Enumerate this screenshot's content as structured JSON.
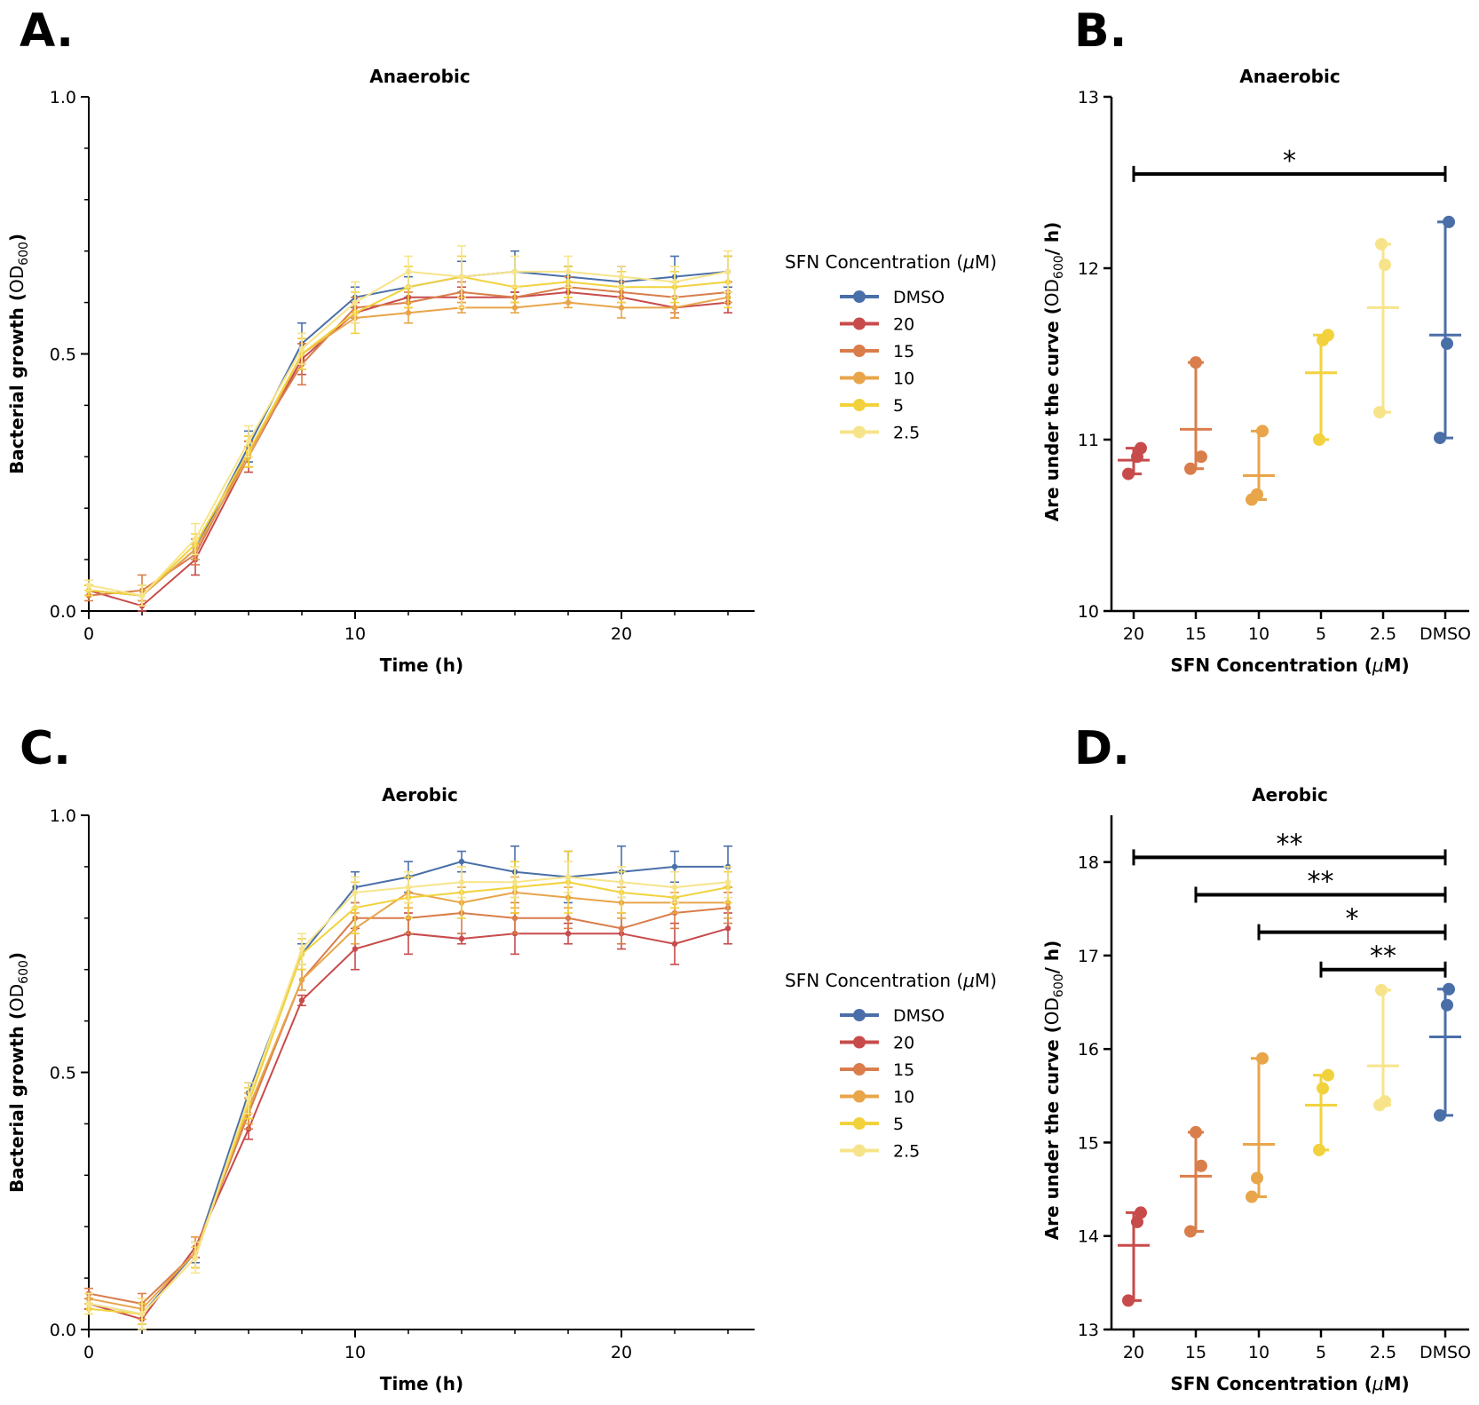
{
  "legend": {
    "title": "SFN Concentration (μM)",
    "series": [
      {
        "name": "DMSO",
        "color": "#4a6fa8"
      },
      {
        "name": "20",
        "color": "#c84b4b"
      },
      {
        "name": "15",
        "color": "#d97d4b"
      },
      {
        "name": "10",
        "color": "#e8a54a"
      },
      {
        "name": "5",
        "color": "#f2d23c"
      },
      {
        "name": "2.5",
        "color": "#f7e48a"
      }
    ]
  },
  "chart_data": [
    {
      "label": "A.",
      "type": "line",
      "title": "Anaerobic",
      "xlabel": "Time (h)",
      "ylabel": "Bacterial growth (OD600)",
      "xlim": [
        0,
        25
      ],
      "ylim": [
        0,
        1.0
      ],
      "xticks": [
        0,
        10,
        20
      ],
      "yticks": [
        0.0,
        0.5,
        1.0
      ],
      "x": [
        0,
        2,
        4,
        6,
        8,
        10,
        12,
        14,
        16,
        18,
        20,
        22,
        24
      ],
      "series": [
        {
          "name": "DMSO",
          "color": "#4a6fa8",
          "values": [
            0.04,
            0.03,
            0.12,
            0.32,
            0.52,
            0.61,
            0.63,
            0.65,
            0.66,
            0.65,
            0.64,
            0.65,
            0.66
          ],
          "err": [
            0.01,
            0.02,
            0.02,
            0.03,
            0.04,
            0.02,
            0.02,
            0.03,
            0.04,
            0.02,
            0.03,
            0.04,
            0.03
          ]
        },
        {
          "name": "20",
          "color": "#c84b4b",
          "values": [
            0.04,
            0.01,
            0.1,
            0.3,
            0.49,
            0.58,
            0.61,
            0.61,
            0.61,
            0.62,
            0.61,
            0.59,
            0.6
          ],
          "err": [
            0.01,
            0.01,
            0.03,
            0.03,
            0.03,
            0.02,
            0.02,
            0.02,
            0.01,
            0.02,
            0.02,
            0.02,
            0.02
          ]
        },
        {
          "name": "15",
          "color": "#d97d4b",
          "values": [
            0.03,
            0.04,
            0.11,
            0.31,
            0.48,
            0.59,
            0.6,
            0.62,
            0.61,
            0.63,
            0.62,
            0.61,
            0.62
          ],
          "err": [
            0.01,
            0.03,
            0.02,
            0.03,
            0.04,
            0.02,
            0.02,
            0.02,
            0.02,
            0.02,
            0.02,
            0.03,
            0.02
          ]
        },
        {
          "name": "10",
          "color": "#e8a54a",
          "values": [
            0.04,
            0.03,
            0.12,
            0.3,
            0.5,
            0.57,
            0.58,
            0.59,
            0.59,
            0.6,
            0.59,
            0.59,
            0.61
          ],
          "err": [
            0.01,
            0.01,
            0.02,
            0.02,
            0.03,
            0.01,
            0.02,
            0.01,
            0.01,
            0.01,
            0.02,
            0.02,
            0.01
          ]
        },
        {
          "name": "5",
          "color": "#f2d23c",
          "values": [
            0.04,
            0.03,
            0.13,
            0.31,
            0.5,
            0.58,
            0.63,
            0.65,
            0.63,
            0.64,
            0.63,
            0.63,
            0.64
          ],
          "err": [
            0.01,
            0.02,
            0.02,
            0.03,
            0.03,
            0.04,
            0.04,
            0.04,
            0.03,
            0.03,
            0.03,
            0.03,
            0.05
          ]
        },
        {
          "name": "2.5",
          "color": "#f7e48a",
          "values": [
            0.05,
            0.03,
            0.14,
            0.33,
            0.51,
            0.6,
            0.66,
            0.65,
            0.66,
            0.66,
            0.65,
            0.64,
            0.66
          ],
          "err": [
            0.01,
            0.02,
            0.03,
            0.03,
            0.03,
            0.04,
            0.03,
            0.06,
            0.03,
            0.03,
            0.02,
            0.03,
            0.04
          ]
        }
      ]
    },
    {
      "label": "B.",
      "type": "scatter",
      "title": "Anaerobic",
      "xlabel": "SFN Concentration (μM)",
      "ylabel": "Are under the curve (OD600/ h)",
      "ylim": [
        10,
        13
      ],
      "yticks": [
        10,
        11,
        12,
        13
      ],
      "categories": [
        "20",
        "15",
        "10",
        "5",
        "2.5",
        "DMSO"
      ],
      "groups": [
        {
          "name": "20",
          "color": "#c84b4b",
          "points": [
            10.8,
            10.9,
            10.95
          ],
          "mean": 10.88,
          "low": 10.8,
          "high": 10.95
        },
        {
          "name": "15",
          "color": "#d97d4b",
          "points": [
            10.83,
            10.9,
            11.45
          ],
          "mean": 11.06,
          "low": 10.83,
          "high": 11.45
        },
        {
          "name": "10",
          "color": "#e8a54a",
          "points": [
            10.65,
            10.68,
            11.05
          ],
          "mean": 10.79,
          "low": 10.65,
          "high": 11.05
        },
        {
          "name": "5",
          "color": "#f2d23c",
          "points": [
            11.0,
            11.58,
            11.61
          ],
          "mean": 11.39,
          "low": 11.0,
          "high": 11.61
        },
        {
          "name": "2.5",
          "color": "#f7e48a",
          "points": [
            11.16,
            12.02,
            12.14
          ],
          "mean": 11.77,
          "low": 11.16,
          "high": 12.14
        },
        {
          "name": "DMSO",
          "color": "#4a6fa8",
          "points": [
            11.01,
            11.56,
            12.27
          ],
          "mean": 11.61,
          "low": 11.01,
          "high": 12.27
        }
      ],
      "significance": [
        {
          "from": "20",
          "to": "DMSO",
          "y": 12.55,
          "label": "*"
        }
      ]
    },
    {
      "label": "C.",
      "type": "line",
      "title": "Aerobic",
      "xlabel": "Time (h)",
      "ylabel": "Bacterial growth (OD600)",
      "xlim": [
        0,
        25
      ],
      "ylim": [
        0,
        1.0
      ],
      "xticks": [
        0,
        10,
        20
      ],
      "yticks": [
        0.0,
        0.5,
        1.0
      ],
      "x": [
        0,
        2,
        4,
        6,
        8,
        10,
        12,
        14,
        16,
        18,
        20,
        22,
        24
      ],
      "series": [
        {
          "name": "DMSO",
          "color": "#4a6fa8",
          "values": [
            0.05,
            0.03,
            0.15,
            0.46,
            0.73,
            0.86,
            0.88,
            0.91,
            0.89,
            0.88,
            0.89,
            0.9,
            0.9
          ],
          "err": [
            0.01,
            0.02,
            0.02,
            0.02,
            0.02,
            0.03,
            0.03,
            0.02,
            0.05,
            0.05,
            0.05,
            0.03,
            0.04
          ]
        },
        {
          "name": "20",
          "color": "#c84b4b",
          "values": [
            0.05,
            0.02,
            0.16,
            0.39,
            0.64,
            0.74,
            0.77,
            0.76,
            0.77,
            0.77,
            0.77,
            0.75,
            0.78
          ],
          "err": [
            0.01,
            0.01,
            0.02,
            0.02,
            0.01,
            0.04,
            0.04,
            0.01,
            0.04,
            0.02,
            0.03,
            0.04,
            0.03
          ]
        },
        {
          "name": "15",
          "color": "#d97d4b",
          "values": [
            0.07,
            0.05,
            0.15,
            0.42,
            0.68,
            0.8,
            0.8,
            0.81,
            0.8,
            0.8,
            0.78,
            0.81,
            0.82
          ],
          "err": [
            0.01,
            0.02,
            0.03,
            0.03,
            0.02,
            0.03,
            0.03,
            0.04,
            0.03,
            0.02,
            0.03,
            0.03,
            0.03
          ]
        },
        {
          "name": "10",
          "color": "#e8a54a",
          "values": [
            0.06,
            0.04,
            0.15,
            0.43,
            0.68,
            0.78,
            0.85,
            0.83,
            0.85,
            0.84,
            0.83,
            0.83,
            0.83
          ],
          "err": [
            0.01,
            0.02,
            0.03,
            0.03,
            0.02,
            0.03,
            0.03,
            0.03,
            0.03,
            0.02,
            0.03,
            0.02,
            0.03
          ]
        },
        {
          "name": "5",
          "color": "#f2d23c",
          "values": [
            0.04,
            0.03,
            0.14,
            0.44,
            0.73,
            0.82,
            0.84,
            0.85,
            0.86,
            0.87,
            0.85,
            0.84,
            0.86
          ],
          "err": [
            0.01,
            0.02,
            0.02,
            0.03,
            0.03,
            0.05,
            0.04,
            0.05,
            0.05,
            0.06,
            0.04,
            0.02,
            0.03
          ]
        },
        {
          "name": "2.5",
          "color": "#f7e48a",
          "values": [
            0.05,
            0.03,
            0.14,
            0.45,
            0.74,
            0.85,
            0.86,
            0.87,
            0.87,
            0.88,
            0.87,
            0.86,
            0.87
          ],
          "err": [
            0.02,
            0.03,
            0.03,
            0.03,
            0.03,
            0.03,
            0.03,
            0.03,
            0.03,
            0.03,
            0.03,
            0.03,
            0.03
          ]
        }
      ]
    },
    {
      "label": "D.",
      "type": "scatter",
      "title": "Aerobic",
      "xlabel": "SFN Concentration (μM)",
      "ylabel": "Are under the curve (OD600/ h)",
      "ylim": [
        13,
        18.5
      ],
      "yticks": [
        13,
        14,
        15,
        16,
        17,
        18
      ],
      "categories": [
        "20",
        "15",
        "10",
        "5",
        "2.5",
        "DMSO"
      ],
      "groups": [
        {
          "name": "20",
          "color": "#c84b4b",
          "points": [
            13.31,
            14.15,
            14.25
          ],
          "mean": 13.9,
          "low": 13.31,
          "high": 14.25
        },
        {
          "name": "15",
          "color": "#d97d4b",
          "points": [
            14.05,
            14.75,
            15.11
          ],
          "mean": 14.64,
          "low": 14.05,
          "high": 15.11
        },
        {
          "name": "10",
          "color": "#e8a54a",
          "points": [
            14.42,
            14.62,
            15.9
          ],
          "mean": 14.98,
          "low": 14.42,
          "high": 15.9
        },
        {
          "name": "5",
          "color": "#f2d23c",
          "points": [
            14.92,
            15.58,
            15.72
          ],
          "mean": 15.4,
          "low": 14.92,
          "high": 15.72
        },
        {
          "name": "2.5",
          "color": "#f7e48a",
          "points": [
            15.4,
            15.44,
            16.63
          ],
          "mean": 15.82,
          "low": 15.4,
          "high": 16.63
        },
        {
          "name": "DMSO",
          "color": "#4a6fa8",
          "points": [
            15.29,
            16.47,
            16.64
          ],
          "mean": 16.13,
          "low": 15.29,
          "high": 16.64
        }
      ],
      "significance": [
        {
          "from": "20",
          "to": "DMSO",
          "y": 18.05,
          "label": "**"
        },
        {
          "from": "15",
          "to": "DMSO",
          "y": 17.65,
          "label": "**"
        },
        {
          "from": "10",
          "to": "DMSO",
          "y": 17.25,
          "label": "*"
        },
        {
          "from": "5",
          "to": "DMSO",
          "y": 16.85,
          "label": "**"
        }
      ]
    }
  ]
}
